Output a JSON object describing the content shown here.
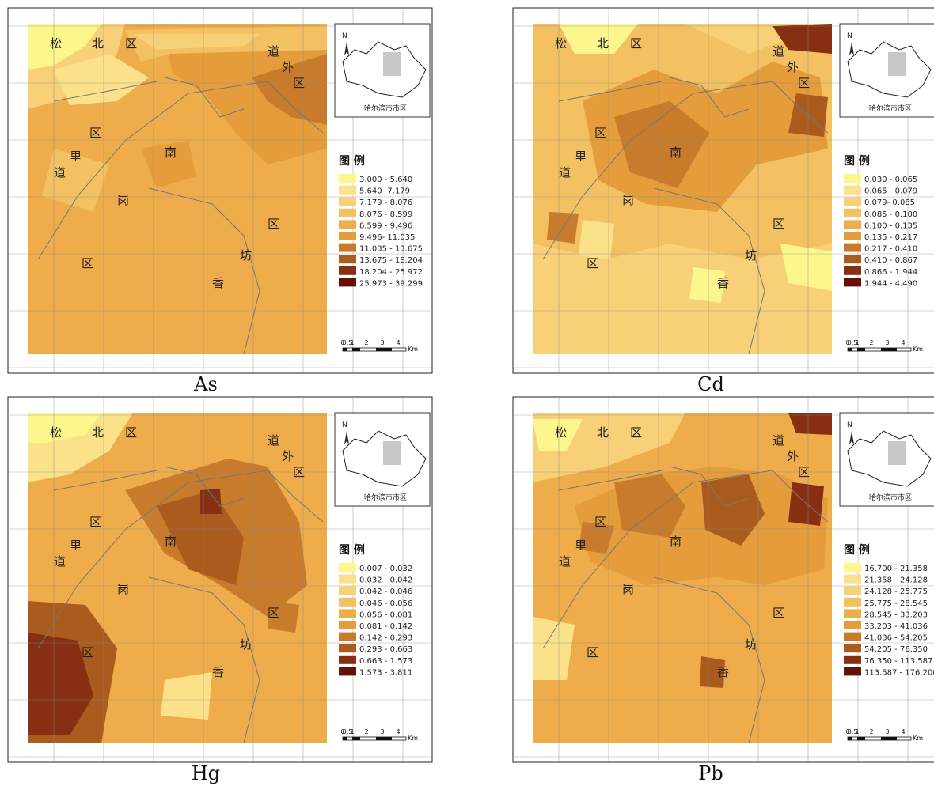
{
  "common": {
    "place_labels": [
      "松",
      "北",
      "区",
      "道",
      "外",
      "区",
      "南",
      "岗",
      "区",
      "道",
      "里",
      "区",
      "香",
      "坊",
      "区"
    ],
    "inset_label": "哈尔滨市市区",
    "north_letter": "N",
    "legend_title": "图 例",
    "scale_ticks": [
      "0",
      "0.5",
      "1",
      "2",
      "3",
      "4"
    ],
    "scale_unit": "Km"
  },
  "maps": [
    {
      "caption": "As",
      "legend": [
        "3.000 - 5.640",
        "5.640- 7.179",
        "7.179 - 8.076",
        "8.076 - 8.599",
        "8.599 - 9.496",
        "9.496- 11.035",
        "11.035 - 13.675",
        "13.675 - 18.204",
        "18.204 - 25.972",
        "25.973 - 39.299"
      ],
      "colors": [
        "#fdf68c",
        "#fbe28a",
        "#f7d077",
        "#f3c062",
        "#eeac4b",
        "#e59c3a",
        "#c97b2c",
        "#aa5c1f",
        "#862f12",
        "#651008"
      ]
    },
    {
      "caption": "Cd",
      "legend": [
        "0.030 - 0.065",
        "0.065 - 0.079",
        "0.079- 0.085",
        "0.085 - 0.100",
        "0.100 - 0.135",
        "0.135 - 0.217",
        "0.217 - 0.410",
        "0.410 - 0.867",
        "0.866 - 1.944",
        "1.944 - 4.490"
      ],
      "colors": [
        "#fdf68c",
        "#fbe28a",
        "#f7d077",
        "#f3c062",
        "#eeac4b",
        "#e59c3a",
        "#c97b2c",
        "#aa5c1f",
        "#862f12",
        "#651008"
      ]
    },
    {
      "caption": "Hg",
      "legend": [
        "0.007 - 0.032",
        "0.032 - 0.042",
        "0.042 - 0.046",
        "0.046 - 0.056",
        "0.056 - 0.081",
        "0.081 - 0.142",
        "0.142 - 0.293",
        "0.293 - 0.663",
        "0.663 - 1.573",
        "1.573 - 3.811"
      ],
      "colors": [
        "#fdf68c",
        "#fbe28a",
        "#f7d077",
        "#f3c062",
        "#eeac4b",
        "#e59c3a",
        "#c97b2c",
        "#aa5c1f",
        "#862f12",
        "#651008"
      ]
    },
    {
      "caption": "Pb",
      "legend": [
        "16.700 - 21.358",
        "21.358 - 24.128",
        "24.128 - 25.775",
        "25.775 - 28.545",
        "28.545 - 33.203",
        "33.203 - 41.036",
        "41.036 - 54.205",
        "54.205 - 76.350",
        "76.350 - 113.587",
        "113.587 - 176.200"
      ],
      "colors": [
        "#fdf68c",
        "#fbe28a",
        "#f7d077",
        "#f3c062",
        "#eeac4b",
        "#e59c3a",
        "#c97b2c",
        "#aa5c1f",
        "#862f12",
        "#651008"
      ]
    }
  ]
}
